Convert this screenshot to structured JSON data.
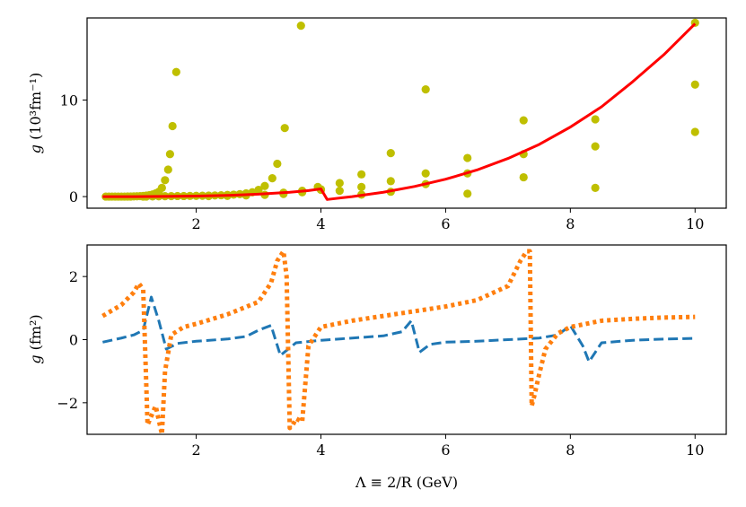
{
  "chart_data": [
    {
      "type": "scatter",
      "panel": "top",
      "ylabel_main": "g",
      "ylabel_rest": " (10³fm⁻¹)",
      "xlim": [
        0.25,
        10.5
      ],
      "ylim": [
        -1.2,
        18.5
      ],
      "xticks": [
        2,
        4,
        6,
        8,
        10
      ],
      "yticks": [
        0,
        10
      ],
      "colors": {
        "scatter": "#bfbf00",
        "fit": "#ff0000"
      },
      "series": [
        {
          "name": "scatter",
          "points": [
            [
              0.55,
              0.0
            ],
            [
              0.6,
              0.0
            ],
            [
              0.65,
              0.0
            ],
            [
              0.7,
              0.0
            ],
            [
              0.75,
              0.0
            ],
            [
              0.8,
              0.0
            ],
            [
              0.85,
              0.0
            ],
            [
              0.9,
              0.01
            ],
            [
              0.95,
              0.01
            ],
            [
              1.0,
              0.02
            ],
            [
              1.05,
              0.03
            ],
            [
              1.1,
              0.05
            ],
            [
              1.15,
              0.07
            ],
            [
              1.2,
              0.1
            ],
            [
              1.25,
              0.15
            ],
            [
              1.3,
              0.22
            ],
            [
              1.35,
              0.33
            ],
            [
              1.4,
              0.5
            ],
            [
              1.45,
              0.9
            ],
            [
              1.5,
              1.7
            ],
            [
              1.55,
              2.8
            ],
            [
              1.58,
              4.4
            ],
            [
              1.62,
              7.3
            ],
            [
              1.68,
              12.9
            ],
            [
              1.15,
              0.0
            ],
            [
              1.2,
              0.01
            ],
            [
              1.3,
              0.02
            ],
            [
              1.4,
              0.03
            ],
            [
              1.5,
              0.04
            ],
            [
              1.6,
              0.05
            ],
            [
              1.7,
              0.06
            ],
            [
              1.8,
              0.06
            ],
            [
              1.9,
              0.07
            ],
            [
              2.0,
              0.08
            ],
            [
              2.1,
              0.09
            ],
            [
              2.2,
              0.1
            ],
            [
              2.3,
              0.12
            ],
            [
              2.4,
              0.14
            ],
            [
              2.5,
              0.17
            ],
            [
              2.6,
              0.2
            ],
            [
              2.7,
              0.25
            ],
            [
              2.8,
              0.33
            ],
            [
              2.9,
              0.45
            ],
            [
              3.0,
              0.7
            ],
            [
              3.1,
              1.1
            ],
            [
              3.22,
              1.9
            ],
            [
              3.3,
              3.4
            ],
            [
              3.42,
              7.1
            ],
            [
              3.68,
              17.7
            ],
            [
              2.2,
              0.05
            ],
            [
              2.5,
              0.08
            ],
            [
              2.8,
              0.12
            ],
            [
              3.1,
              0.18
            ],
            [
              3.4,
              0.27
            ],
            [
              3.7,
              0.45
            ],
            [
              4.0,
              0.75
            ],
            [
              3.4,
              0.4
            ],
            [
              3.7,
              0.6
            ],
            [
              3.95,
              1.0
            ],
            [
              4.0,
              0.7
            ],
            [
              4.3,
              1.4
            ],
            [
              4.3,
              0.6
            ],
            [
              4.65,
              2.3
            ],
            [
              4.65,
              1.0
            ],
            [
              4.65,
              0.2
            ],
            [
              5.12,
              4.5
            ],
            [
              5.12,
              1.6
            ],
            [
              5.12,
              0.5
            ],
            [
              5.68,
              11.1
            ],
            [
              5.68,
              2.4
            ],
            [
              5.68,
              1.3
            ],
            [
              6.35,
              4.0
            ],
            [
              6.35,
              2.4
            ],
            [
              6.35,
              0.3
            ],
            [
              7.25,
              7.9
            ],
            [
              7.25,
              4.4
            ],
            [
              7.25,
              2.0
            ],
            [
              8.4,
              8.0
            ],
            [
              8.4,
              5.2
            ],
            [
              8.4,
              0.9
            ],
            [
              10.0,
              18.0
            ],
            [
              10.0,
              11.6
            ],
            [
              10.0,
              6.7
            ]
          ]
        },
        {
          "name": "fit",
          "x": [
            0.5,
            1.0,
            1.5,
            2.0,
            2.5,
            3.0,
            3.5,
            3.8,
            4.0,
            4.1,
            4.5,
            5.0,
            5.5,
            6.0,
            6.5,
            7.0,
            7.5,
            8.0,
            8.5,
            9.0,
            9.5,
            10.0
          ],
          "values": [
            0.0,
            0.0,
            0.02,
            0.05,
            0.12,
            0.25,
            0.45,
            0.62,
            0.8,
            -0.3,
            0.0,
            0.45,
            1.05,
            1.8,
            2.75,
            3.95,
            5.4,
            7.2,
            9.3,
            11.9,
            14.7,
            17.9
          ]
        }
      ]
    },
    {
      "type": "line",
      "panel": "bottom",
      "ylabel_main": "g",
      "ylabel_rest": " (fm²)",
      "xlabel": "Λ ≡ 2/R (GeV)",
      "xlim": [
        0.25,
        10.5
      ],
      "ylim": [
        -3.0,
        3.0
      ],
      "xticks": [
        2,
        4,
        6,
        8,
        10
      ],
      "yticks": [
        2,
        0,
        -2
      ],
      "ytick_labels": [
        "2",
        "0",
        "−2"
      ],
      "colors": {
        "dashed": "#1f77b4",
        "dotted": "#ff7f0e"
      },
      "series": [
        {
          "name": "dashed",
          "x": [
            0.5,
            0.8,
            1.0,
            1.15,
            1.28,
            1.4,
            1.52,
            1.7,
            2.0,
            2.5,
            2.8,
            3.0,
            3.2,
            3.35,
            3.6,
            4.0,
            4.5,
            5.0,
            5.3,
            5.45,
            5.58,
            5.75,
            6.0,
            6.5,
            7.0,
            7.5,
            7.8,
            8.0,
            8.2,
            8.3,
            8.5,
            9.0,
            9.5,
            10.0
          ],
          "values": [
            -0.08,
            0.05,
            0.15,
            0.3,
            1.35,
            0.6,
            -0.3,
            -0.12,
            -0.05,
            0.02,
            0.1,
            0.3,
            0.45,
            -0.5,
            -0.1,
            -0.02,
            0.05,
            0.12,
            0.25,
            0.6,
            -0.4,
            -0.15,
            -0.08,
            -0.05,
            0.0,
            0.05,
            0.15,
            0.45,
            -0.2,
            -0.7,
            -0.1,
            -0.02,
            0.02,
            0.04
          ]
        },
        {
          "name": "dotted",
          "x": [
            0.5,
            0.8,
            1.0,
            1.08,
            1.15,
            1.22,
            1.35,
            1.45,
            1.5,
            1.6,
            1.8,
            2.0,
            2.5,
            3.0,
            3.2,
            3.3,
            3.4,
            3.45,
            3.5,
            3.55,
            3.6,
            3.7,
            3.8,
            4.0,
            4.5,
            5.0,
            5.5,
            6.0,
            6.5,
            7.0,
            7.2,
            7.3,
            7.35,
            7.38,
            7.42,
            7.5,
            7.6,
            7.8,
            8.0,
            8.5,
            9.0,
            9.5,
            10.0
          ],
          "values": [
            0.75,
            1.1,
            1.5,
            1.78,
            1.6,
            -2.7,
            -2.1,
            -3.0,
            -1.0,
            0.15,
            0.4,
            0.5,
            0.8,
            1.2,
            1.8,
            2.5,
            2.8,
            2.0,
            -2.8,
            -2.7,
            -2.5,
            -2.6,
            -0.2,
            0.4,
            0.6,
            0.75,
            0.9,
            1.05,
            1.25,
            1.7,
            2.5,
            2.8,
            2.8,
            -2.1,
            -1.8,
            -1.1,
            -0.3,
            0.2,
            0.4,
            0.6,
            0.66,
            0.7,
            0.72
          ]
        }
      ]
    }
  ]
}
